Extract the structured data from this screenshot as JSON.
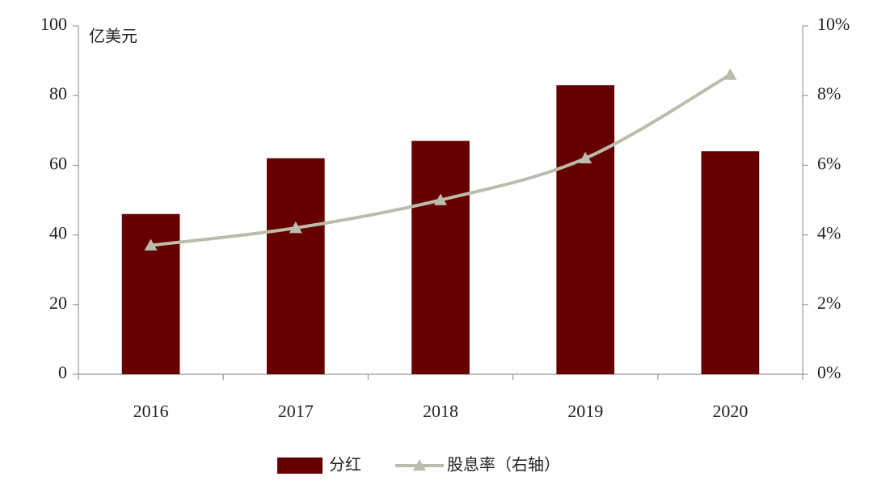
{
  "chart_data": {
    "type": "bar",
    "annotation": "亿美元",
    "categories": [
      "2016",
      "2017",
      "2018",
      "2019",
      "2020"
    ],
    "series": [
      {
        "name": "分红",
        "type": "bar",
        "color": "#660000",
        "values": [
          46,
          62,
          67,
          83,
          64
        ]
      },
      {
        "name": "股息率（右轴）",
        "type": "line",
        "marker": "triangle",
        "axis": "y2",
        "color": "#bcbcac",
        "values": [
          3.7,
          4.2,
          5.0,
          6.2,
          8.6
        ]
      }
    ],
    "ylim": [
      0,
      100
    ],
    "yticks": [
      0,
      20,
      40,
      60,
      80,
      100
    ],
    "y2lim": [
      0,
      10
    ],
    "y2ticks": [
      {
        "value": 0,
        "label": "0%"
      },
      {
        "value": 2,
        "label": "2%"
      },
      {
        "value": 4,
        "label": "4%"
      },
      {
        "value": 6,
        "label": "6%"
      },
      {
        "value": 8,
        "label": "8%"
      },
      {
        "value": 10,
        "label": "10%"
      }
    ],
    "legend": "bottom",
    "grid": false
  }
}
